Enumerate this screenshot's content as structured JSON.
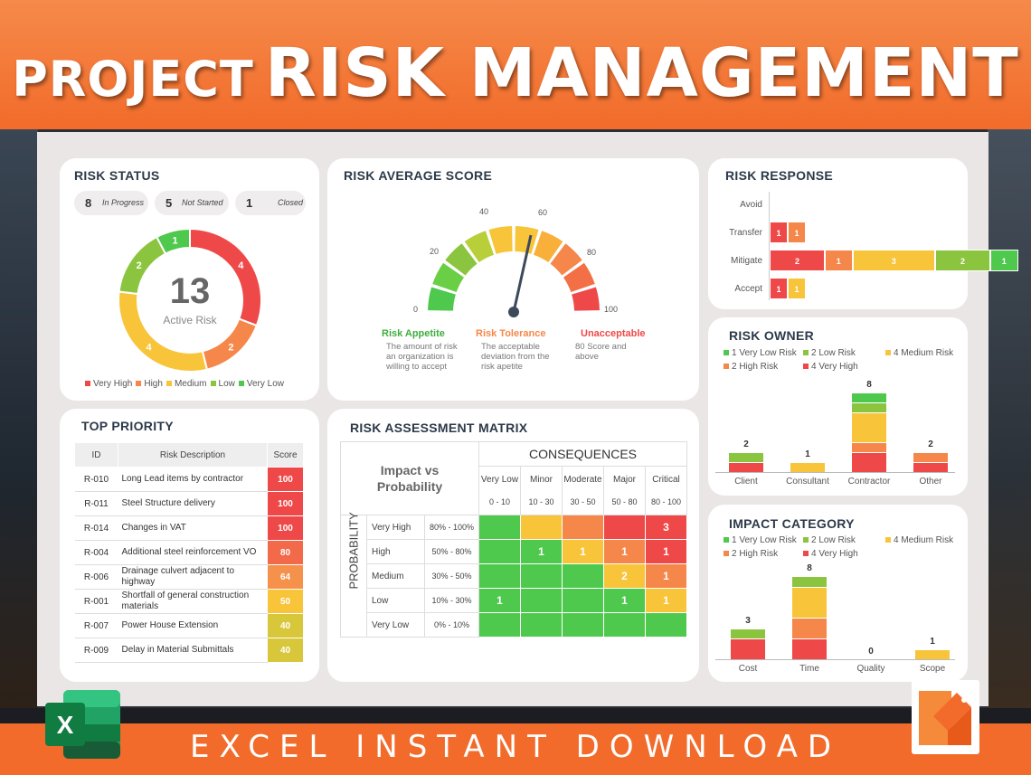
{
  "banner": {
    "title_a": "PROJECT",
    "title_b": "RISK MANAGEMENT"
  },
  "footer": {
    "text": "EXCEL INSTANT DOWNLOAD"
  },
  "colors": {
    "very_high": "#ef4848",
    "high": "#f5874a",
    "medium": "#f8c43a",
    "low": "#8bc540",
    "very_low": "#4ec94e",
    "accent": "#f26b2a"
  },
  "risk_status": {
    "title": "RISK STATUS",
    "pills": [
      {
        "count": "8",
        "label": "In Progress"
      },
      {
        "count": "5",
        "label": "Not Started"
      },
      {
        "count": "1",
        "label": "Closed"
      }
    ],
    "total": "13",
    "total_label": "Active Risk",
    "chart_data": {
      "type": "pie",
      "slices": [
        {
          "name": "Very High",
          "value": 4
        },
        {
          "name": "High",
          "value": 2
        },
        {
          "name": "Medium",
          "value": 4
        },
        {
          "name": "Low",
          "value": 2
        },
        {
          "name": "Very Low",
          "value": 1
        }
      ]
    },
    "legend": [
      "Very High",
      "High",
      "Medium",
      "Low",
      "Very Low"
    ]
  },
  "avg_score": {
    "title": "RISK AVERAGE SCORE",
    "ticks": [
      "0",
      "20",
      "40",
      "60",
      "80",
      "100"
    ],
    "needle_value": 57,
    "zones": [
      {
        "title": "Risk Appetite",
        "desc": "The amount of risk an organization is willing to accept"
      },
      {
        "title": "Risk Tolerance",
        "desc": "The acceptable deviation from the risk apetite"
      },
      {
        "title": "Unacceptable",
        "desc": "80 Score and above"
      }
    ]
  },
  "risk_response": {
    "title": "RISK RESPONSE",
    "chart_data": {
      "type": "bar",
      "orientation": "horizontal",
      "categories": [
        "Avoid",
        "Transfer",
        "Mitigate",
        "Accept"
      ],
      "series": [
        {
          "name": "Very High",
          "values": [
            0,
            1,
            2,
            1
          ]
        },
        {
          "name": "High",
          "values": [
            0,
            1,
            1,
            0
          ]
        },
        {
          "name": "Medium",
          "values": [
            0,
            0,
            3,
            1
          ]
        },
        {
          "name": "Low",
          "values": [
            0,
            0,
            2,
            0
          ]
        },
        {
          "name": "Very Low",
          "values": [
            0,
            0,
            1,
            0
          ]
        }
      ]
    }
  },
  "risk_owner": {
    "title": "RISK OWNER",
    "legend": [
      "1 Very Low Risk",
      "2 Low Risk",
      "4 Medium Risk",
      "2 High Risk",
      "4 Very High"
    ],
    "chart_data": {
      "type": "bar",
      "stacked": true,
      "categories": [
        "Client",
        "Consultant",
        "Contractor",
        "Other"
      ],
      "totals": [
        2,
        1,
        8,
        2
      ],
      "series": [
        {
          "name": "Very High",
          "values": [
            1,
            0,
            2,
            1
          ]
        },
        {
          "name": "High",
          "values": [
            0,
            0,
            1,
            1
          ]
        },
        {
          "name": "Medium",
          "values": [
            0,
            1,
            3,
            0
          ]
        },
        {
          "name": "Low",
          "values": [
            1,
            0,
            1,
            0
          ]
        },
        {
          "name": "Very Low",
          "values": [
            0,
            0,
            1,
            0
          ]
        }
      ]
    }
  },
  "impact_category": {
    "title": "IMPACT CATEGORY",
    "legend": [
      "1 Very Low Risk",
      "2 Low Risk",
      "4 Medium Risk",
      "2 High Risk",
      "4 Very High"
    ],
    "chart_data": {
      "type": "bar",
      "stacked": true,
      "categories": [
        "Cost",
        "Time",
        "Quality",
        "Scope"
      ],
      "totals": [
        3,
        8,
        0,
        1
      ],
      "series": [
        {
          "name": "Very High",
          "values": [
            2,
            2,
            0,
            0
          ]
        },
        {
          "name": "High",
          "values": [
            0,
            2,
            0,
            0
          ]
        },
        {
          "name": "Medium",
          "values": [
            0,
            3,
            0,
            1
          ]
        },
        {
          "name": "Low",
          "values": [
            1,
            1,
            0,
            0
          ]
        },
        {
          "name": "Very Low",
          "values": [
            0,
            0,
            0,
            0
          ]
        }
      ]
    }
  },
  "top_priority": {
    "title": "TOP PRIORITY",
    "headers": [
      "ID",
      "Risk Description",
      "Score"
    ],
    "rows": [
      {
        "id": "R-010",
        "desc": "Long Lead items by contractor",
        "score": "100",
        "color": "#ef4848"
      },
      {
        "id": "R-011",
        "desc": "Steel Structure delivery",
        "score": "100",
        "color": "#ef4848"
      },
      {
        "id": "R-014",
        "desc": "Changes in VAT",
        "score": "100",
        "color": "#ef4848"
      },
      {
        "id": "R-004",
        "desc": "Additional steel reinforcement VO",
        "score": "80",
        "color": "#f26a4a"
      },
      {
        "id": "R-006",
        "desc": "Drainage culvert adjacent to highway",
        "score": "64",
        "color": "#f5914a"
      },
      {
        "id": "R-001",
        "desc": "Shortfall of general construction materials",
        "score": "50",
        "color": "#f8c43a"
      },
      {
        "id": "R-007",
        "desc": "Power House Extension",
        "score": "40",
        "color": "#d8c73a"
      },
      {
        "id": "R-009",
        "desc": "Delay in Material Submittals",
        "score": "40",
        "color": "#d8c73a"
      }
    ]
  },
  "matrix": {
    "title": "RISK ASSESSMENT MATRIX",
    "corner": "Impact vs Probability",
    "consequences": "CONSEQUENCES",
    "probability": "PROBABILITY",
    "cols": [
      {
        "name": "Very Low",
        "range": "0 - 10"
      },
      {
        "name": "Minor",
        "range": "10 - 30"
      },
      {
        "name": "Moderate",
        "range": "30 - 50"
      },
      {
        "name": "Major",
        "range": "50 - 80"
      },
      {
        "name": "Critical",
        "range": "80 - 100"
      }
    ],
    "rows": [
      {
        "name": "Very High",
        "range": "80% - 100%",
        "cells": [
          "",
          "",
          "",
          "",
          "3"
        ],
        "colors": [
          "#4ec94e",
          "#f8c43a",
          "#f5874a",
          "#ef4848",
          "#ef4848"
        ]
      },
      {
        "name": "High",
        "range": "50% - 80%",
        "cells": [
          "",
          "1",
          "1",
          "1",
          "1"
        ],
        "colors": [
          "#4ec94e",
          "#4ec94e",
          "#f8c43a",
          "#f5874a",
          "#ef4848"
        ]
      },
      {
        "name": "Medium",
        "range": "30% - 50%",
        "cells": [
          "",
          "",
          "",
          "2",
          "1"
        ],
        "colors": [
          "#4ec94e",
          "#4ec94e",
          "#4ec94e",
          "#f8c43a",
          "#f5874a"
        ]
      },
      {
        "name": "Low",
        "range": "10% - 30%",
        "cells": [
          "1",
          "",
          "",
          "1",
          "1"
        ],
        "colors": [
          "#4ec94e",
          "#4ec94e",
          "#4ec94e",
          "#4ec94e",
          "#f8c43a"
        ]
      },
      {
        "name": "Very Low",
        "range": "0% - 10%",
        "cells": [
          "",
          "",
          "",
          "",
          ""
        ],
        "colors": [
          "#4ec94e",
          "#4ec94e",
          "#4ec94e",
          "#4ec94e",
          "#4ec94e"
        ]
      }
    ]
  }
}
